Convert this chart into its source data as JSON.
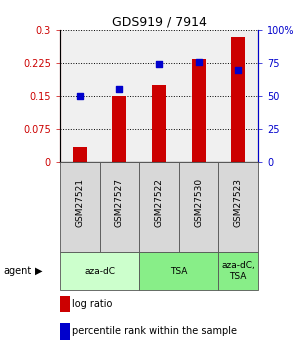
{
  "title": "GDS919 / 7914",
  "samples": [
    "GSM27521",
    "GSM27527",
    "GSM27522",
    "GSM27530",
    "GSM27523"
  ],
  "log_ratio": [
    0.033,
    0.15,
    0.175,
    0.235,
    0.285
  ],
  "percentile_rank": [
    50,
    55.5,
    74.5,
    75.5,
    69.5
  ],
  "bar_color": "#cc0000",
  "dot_color": "#0000cc",
  "ylim_left": [
    0,
    0.3
  ],
  "ylim_right": [
    0,
    100
  ],
  "yticks_left": [
    0,
    0.075,
    0.15,
    0.225,
    0.3
  ],
  "ytick_labels_left": [
    "0",
    "0.075",
    "0.15",
    "0.225",
    "0.3"
  ],
  "yticks_right": [
    0,
    25,
    50,
    75,
    100
  ],
  "ytick_labels_right": [
    "0",
    "25",
    "50",
    "75",
    "100%"
  ],
  "agent_groups": [
    {
      "label": "aza-dC",
      "span": [
        0,
        2
      ],
      "color": "#ccffcc"
    },
    {
      "label": "TSA",
      "span": [
        2,
        4
      ],
      "color": "#88ee88"
    },
    {
      "label": "aza-dC,\nTSA",
      "span": [
        4,
        5
      ],
      "color": "#88ee88"
    }
  ],
  "legend_items": [
    {
      "color": "#cc0000",
      "label": "log ratio"
    },
    {
      "color": "#0000cc",
      "label": "percentile rank within the sample"
    }
  ],
  "bar_width": 0.35,
  "plot_facecolor": "#f0f0f0",
  "grid_color": "black",
  "grid_linestyle": ":",
  "grid_linewidth": 0.7
}
